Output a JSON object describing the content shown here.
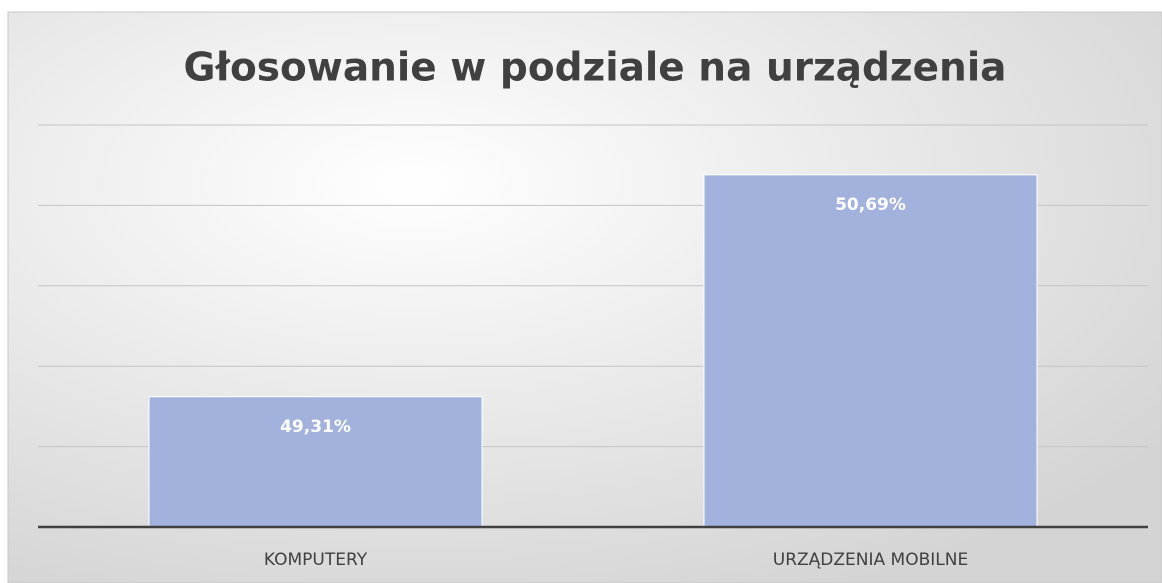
{
  "chart_data": {
    "type": "bar",
    "title": "Głosowanie w podziale na urządzenia",
    "categories": [
      "KOMPUTERY",
      "URZĄDZENIA MOBILNE"
    ],
    "values": [
      49.31,
      50.69
    ],
    "value_labels": [
      "49,31%",
      "50,69%"
    ],
    "color": "#a2b2dc",
    "ylim": [
      48.5,
      51
    ],
    "yticks": [
      48.5,
      49,
      49.5,
      50,
      50.5,
      51
    ],
    "grid": true
  }
}
